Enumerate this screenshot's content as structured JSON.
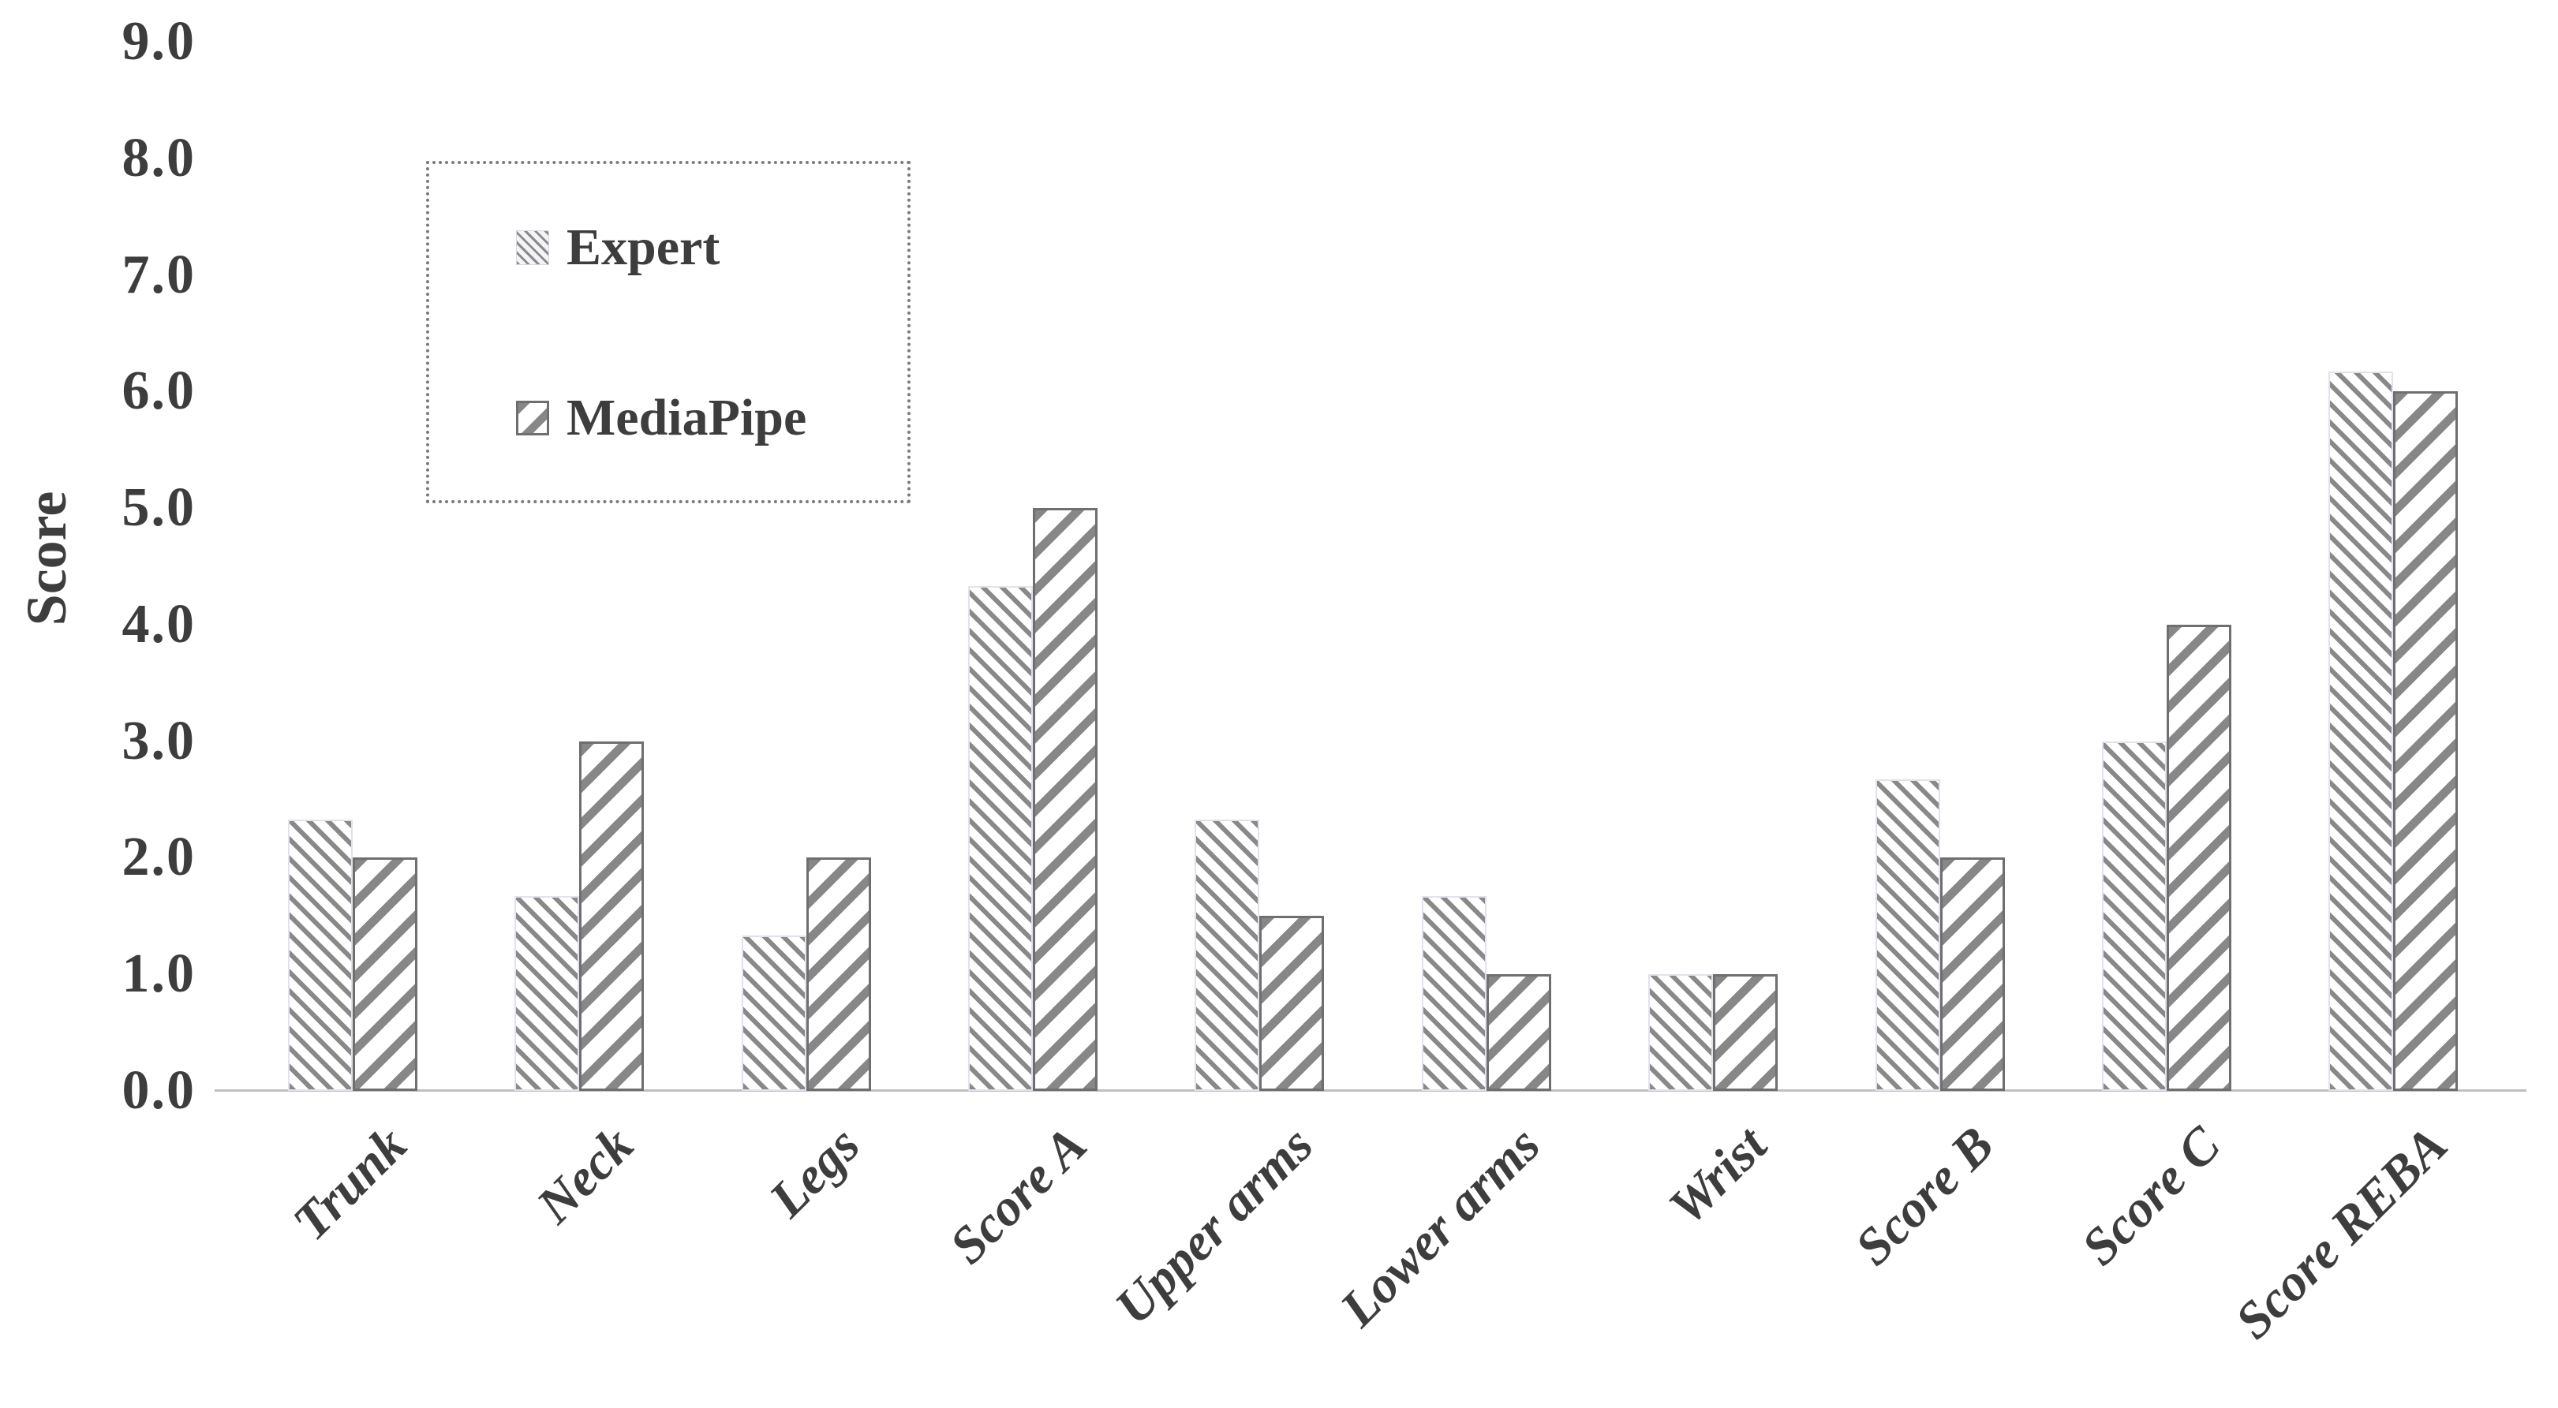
{
  "chart_data": {
    "type": "bar",
    "title": "",
    "xlabel": "",
    "ylabel": "Score",
    "ylim": [
      0,
      9
    ],
    "ytick_step": 1,
    "ytick_labels": [
      "9.0",
      "8.0",
      "7.0",
      "6.0",
      "5.0",
      "4.0",
      "3.0",
      "2.0",
      "1.0",
      "0.0"
    ],
    "grid": false,
    "legend_position": "top-left",
    "categories": [
      "Trunk",
      "Neck",
      "Legs",
      "Score A",
      "Upper arms",
      "Lower arms",
      "Wrist",
      "Score B",
      "Score C",
      "Score REBA"
    ],
    "series": [
      {
        "name": "Expert",
        "pattern": "diagonal-down-fine",
        "values": [
          2.33,
          1.67,
          1.33,
          4.33,
          2.33,
          1.67,
          1.0,
          2.67,
          3.0,
          6.17
        ]
      },
      {
        "name": "MediaPipe",
        "pattern": "diagonal-up-wide",
        "values": [
          2.0,
          3.0,
          2.0,
          5.0,
          1.5,
          1.0,
          1.0,
          2.0,
          4.0,
          6.0
        ]
      }
    ]
  },
  "colors": {
    "background": "#ffffff",
    "hatch_gray": "#888888",
    "mediapipe_border": "#6f6f6f",
    "expert_border": "#e2e2ee",
    "axis_line": "#c0c0c0",
    "text": "#3d3d3d",
    "legend_border": "#7b7b7b"
  }
}
